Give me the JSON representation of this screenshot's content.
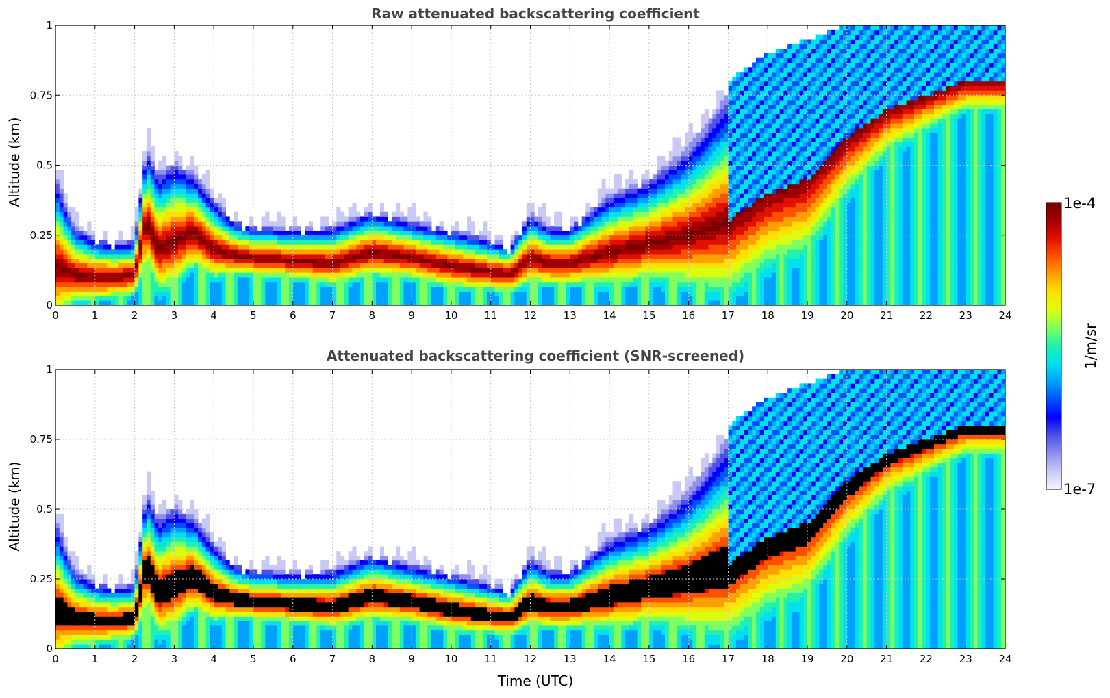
{
  "colors": {
    "colormap": [
      "#f4f4ff",
      "#c9c9f5",
      "#8f8fee",
      "#5050e8",
      "#0000ff",
      "#0050ff",
      "#00a0ff",
      "#00e0f0",
      "#20f0b0",
      "#80ff60",
      "#d8ff10",
      "#ffe000",
      "#ffa000",
      "#ff5000",
      "#e01000",
      "#a00000",
      "#7a0000"
    ],
    "screened_saturation": "#000000",
    "grid": "#c8c8c8"
  },
  "colorbar": {
    "max_label": "1e-4",
    "min_label": "1e-7",
    "label": "1/m/sr"
  },
  "chart_data": [
    {
      "type": "heatmap",
      "title": "Raw attenuated backscattering coefficient",
      "xlabel": "",
      "ylabel": "Altitude (km)",
      "xlim": [
        0,
        24
      ],
      "ylim": [
        0,
        1
      ],
      "x_ticks": [
        "0",
        "1",
        "2",
        "3",
        "4",
        "5",
        "6",
        "7",
        "8",
        "9",
        "10",
        "11",
        "12",
        "13",
        "14",
        "15",
        "16",
        "17",
        "18",
        "19",
        "20",
        "21",
        "22",
        "23",
        "24"
      ],
      "y_ticks": [
        "0",
        "0.25",
        "0.5",
        "0.75",
        "1"
      ],
      "grid": true,
      "screened": false,
      "layer_profile": {
        "time_h": [
          0,
          0.5,
          1,
          1.5,
          2,
          2.3,
          2.6,
          3,
          3.5,
          4,
          4.5,
          5,
          6,
          7,
          8,
          9,
          10,
          11,
          11.5,
          12,
          12.5,
          13,
          14,
          15,
          16,
          17,
          18,
          19,
          20,
          21,
          22,
          23,
          23.8
        ],
        "center_km": [
          0.14,
          0.11,
          0.1,
          0.1,
          0.11,
          0.3,
          0.2,
          0.23,
          0.26,
          0.2,
          0.18,
          0.17,
          0.16,
          0.15,
          0.19,
          0.17,
          0.14,
          0.12,
          0.11,
          0.17,
          0.15,
          0.15,
          0.19,
          0.22,
          0.25,
          0.3,
          0.4,
          0.45,
          0.6,
          0.7,
          0.75,
          0.8,
          0.8
        ],
        "top_km": [
          0.5,
          0.3,
          0.26,
          0.24,
          0.25,
          0.6,
          0.5,
          0.55,
          0.5,
          0.4,
          0.32,
          0.3,
          0.29,
          0.3,
          0.36,
          0.32,
          0.29,
          0.25,
          0.23,
          0.35,
          0.3,
          0.3,
          0.42,
          0.48,
          0.6,
          0.8,
          0.9,
          0.95,
          1.0,
          1.0,
          1.0,
          1.0,
          1.0
        ]
      }
    },
    {
      "type": "heatmap",
      "title": "Attenuated backscattering coefficient (SNR-screened)",
      "xlabel": "Time (UTC)",
      "ylabel": "Altitude (km)",
      "xlim": [
        0,
        24
      ],
      "ylim": [
        0,
        1
      ],
      "x_ticks": [
        "0",
        "1",
        "2",
        "3",
        "4",
        "5",
        "6",
        "7",
        "8",
        "9",
        "10",
        "11",
        "12",
        "13",
        "14",
        "15",
        "16",
        "17",
        "18",
        "19",
        "20",
        "21",
        "22",
        "23",
        "24"
      ],
      "y_ticks": [
        "0",
        "0.25",
        "0.5",
        "0.75",
        "1"
      ],
      "grid": true,
      "screened": true,
      "layer_profile": {
        "time_h": [
          0,
          0.5,
          1,
          1.5,
          2,
          2.3,
          2.6,
          3,
          3.5,
          4,
          4.5,
          5,
          6,
          7,
          8,
          9,
          10,
          11,
          11.5,
          12,
          12.5,
          13,
          14,
          15,
          16,
          17,
          18,
          19,
          20,
          21,
          22,
          23,
          23.8
        ],
        "center_km": [
          0.14,
          0.11,
          0.1,
          0.1,
          0.11,
          0.3,
          0.2,
          0.23,
          0.26,
          0.2,
          0.18,
          0.17,
          0.16,
          0.15,
          0.19,
          0.17,
          0.14,
          0.12,
          0.11,
          0.17,
          0.15,
          0.15,
          0.19,
          0.22,
          0.25,
          0.3,
          0.4,
          0.45,
          0.6,
          0.7,
          0.75,
          0.8,
          0.8
        ],
        "top_km": [
          0.5,
          0.3,
          0.26,
          0.24,
          0.25,
          0.6,
          0.5,
          0.55,
          0.5,
          0.4,
          0.32,
          0.3,
          0.29,
          0.3,
          0.36,
          0.32,
          0.29,
          0.25,
          0.23,
          0.35,
          0.3,
          0.3,
          0.42,
          0.48,
          0.6,
          0.8,
          0.9,
          0.95,
          1.0,
          1.0,
          1.0,
          1.0,
          1.0
        ]
      }
    }
  ]
}
